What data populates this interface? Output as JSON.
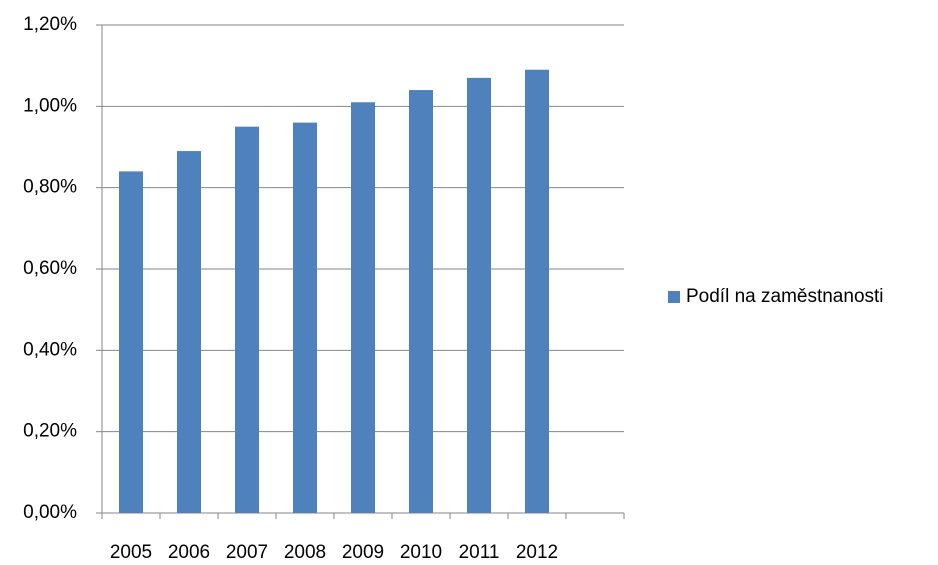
{
  "chart_data": {
    "type": "bar",
    "categories": [
      "2005",
      "2006",
      "2007",
      "2008",
      "2009",
      "2010",
      "2011",
      "2012",
      null
    ],
    "series": [
      {
        "name": "Podíl na zaměstnanosti",
        "color": "#4f81bd",
        "values": [
          0.84,
          0.89,
          0.95,
          0.96,
          1.01,
          1.04,
          1.07,
          1.09,
          null
        ]
      }
    ],
    "ylim": [
      0,
      1.2
    ],
    "yticks": [
      {
        "value": 0,
        "label": "0,00%"
      },
      {
        "value": 0.2,
        "label": "0,20%"
      },
      {
        "value": 0.4,
        "label": "0,40%"
      },
      {
        "value": 0.6,
        "label": "0,60%"
      },
      {
        "value": 0.8,
        "label": "0,80%"
      },
      {
        "value": 1.0,
        "label": "1,00%"
      },
      {
        "value": 1.2,
        "label": "1,20%"
      }
    ],
    "grid": true,
    "legend": "right"
  }
}
